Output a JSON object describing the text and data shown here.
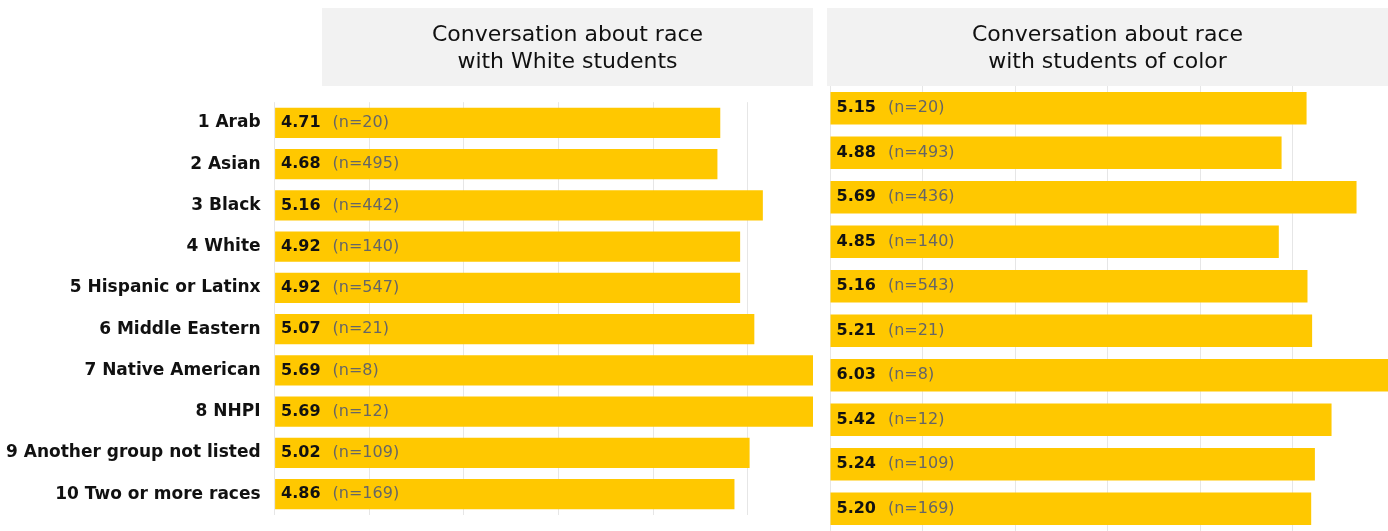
{
  "chart_data": [
    {
      "type": "bar",
      "orientation": "horizontal",
      "title": "Conversation about race",
      "subtitle": "with White students",
      "categories": [
        "1 Arab",
        "2 Asian",
        "3 Black",
        "4 White",
        "5 Hispanic or Latinx",
        "6 Middle Eastern",
        "7 Native American",
        "8 NHPI",
        "9 Another group not listed",
        "10 Two or more races"
      ],
      "series": [
        {
          "color": "#ffc800",
          "values": [
            4.71,
            4.68,
            5.16,
            4.92,
            4.92,
            5.07,
            5.69,
            5.69,
            5.02,
            4.86
          ],
          "value_labels": [
            "4.71",
            "4.68",
            "5.16",
            "4.92",
            "4.92",
            "5.07",
            "5.69",
            "5.69",
            "5.02",
            "4.86"
          ]
        }
      ],
      "grid": "x",
      "legend": false,
      "tick_labels": "y",
      "annotations": [
        "(n=20)",
        "(n=495)",
        "(n=442)",
        "(n=140)",
        "(n=547)",
        "(n=21)",
        "(n=8)",
        "(n=12)",
        "(n=109)",
        "(n=169)"
      ]
    },
    {
      "type": "bar",
      "orientation": "horizontal",
      "title": "Conversation about race",
      "subtitle": "with students of color",
      "categories": [
        null,
        null,
        null,
        null,
        null,
        null,
        null,
        null,
        null,
        null
      ],
      "series": [
        {
          "color": "#ffc800",
          "values": [
            5.15,
            4.88,
            5.69,
            4.85,
            5.16,
            5.21,
            6.03,
            5.42,
            5.24,
            5.2
          ],
          "value_labels": [
            "5.15",
            "4.88",
            "5.69",
            "4.85",
            "5.16",
            "5.21",
            "6.03",
            "5.42",
            "5.24",
            "5.20"
          ]
        }
      ],
      "grid": "x",
      "legend": false,
      "tick_labels": false,
      "annotations": [
        "(n=20)",
        "(n=493)",
        "(n=436)",
        "(n=140)",
        "(n=543)",
        "(n=21)",
        "(n=8)",
        "(n=12)",
        "(n=109)",
        "(n=169)"
      ]
    }
  ]
}
